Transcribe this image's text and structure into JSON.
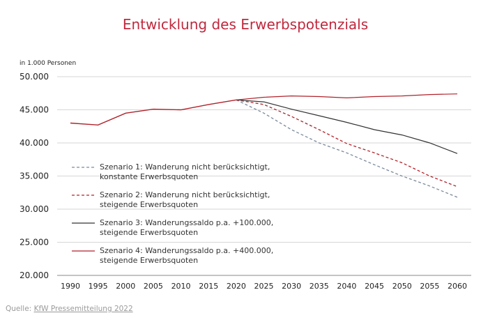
{
  "chart_data": {
    "type": "line",
    "title": "Entwicklung des Erwerbspotenzials",
    "ylabel": "in 1.000 Personen",
    "ylim": [
      20000,
      50000
    ],
    "yticks": [
      20000,
      25000,
      30000,
      35000,
      40000,
      45000,
      50000
    ],
    "ytick_labels": [
      "20.000",
      "25.000",
      "30.000",
      "35.000",
      "40.000",
      "45.000",
      "50.000"
    ],
    "x": [
      1990,
      1995,
      2000,
      2005,
      2010,
      2015,
      2020,
      2025,
      2030,
      2035,
      2040,
      2045,
      2050,
      2055,
      2060
    ],
    "xtick_labels": [
      "1990",
      "1995",
      "2000",
      "2005",
      "2010",
      "2015",
      "2020",
      "2025",
      "2030",
      "2035",
      "2040",
      "2045",
      "2050",
      "2055",
      "2060"
    ],
    "grid": "horizontal",
    "history": {
      "x": [
        1990,
        1995,
        2000,
        2005,
        2010,
        2015,
        2020
      ],
      "values": [
        43000,
        42700,
        44500,
        45100,
        45000,
        45800,
        46500
      ]
    },
    "series": [
      {
        "name": "Szenario 1: Wanderung nicht berücksichtigt, konstante Erwerbsquoten",
        "label_lines": [
          "Szenario 1: Wanderung nicht berücksichtigt,",
          "konstante Erwerbsquoten"
        ],
        "color": "#7a8a99",
        "style": "dashed",
        "x": [
          2020,
          2025,
          2030,
          2035,
          2040,
          2045,
          2050,
          2055,
          2060
        ],
        "values": [
          46500,
          44500,
          42000,
          40000,
          38500,
          36700,
          35000,
          33500,
          31800
        ]
      },
      {
        "name": "Szenario 2: Wanderung nicht berücksichtigt, steigende Erwerbsquoten",
        "label_lines": [
          "Szenario 2: Wanderung nicht berücksichtigt,",
          "steigende Erwerbsquoten"
        ],
        "color": "#b0222a",
        "style": "dashed",
        "x": [
          2020,
          2025,
          2030,
          2035,
          2040,
          2045,
          2050,
          2055,
          2060
        ],
        "values": [
          46500,
          45800,
          44000,
          42000,
          39900,
          38500,
          37000,
          35000,
          33400
        ]
      },
      {
        "name": "Szenario 3: Wanderungssaldo p.a. +100.000, steigende Erwerbsquoten",
        "label_lines": [
          "Szenario 3: Wanderungssaldo p.a. +100.000,",
          "steigende Erwerbsquoten"
        ],
        "color": "#333333",
        "style": "solid",
        "x": [
          2020,
          2025,
          2030,
          2035,
          2040,
          2045,
          2050,
          2055,
          2060
        ],
        "values": [
          46500,
          46200,
          45100,
          44100,
          43100,
          42000,
          41200,
          40000,
          38400
        ]
      },
      {
        "name": "Szenario 4: Wanderungssaldo p.a. +400.000, steigende Erwerbsquoten",
        "label_lines": [
          "Szenario 4: Wanderungssaldo p.a. +400.000,",
          "steigende Erwerbsquoten"
        ],
        "color": "#b0222a",
        "style": "solid",
        "x": [
          2020,
          2025,
          2030,
          2035,
          2040,
          2045,
          2050,
          2055,
          2060
        ],
        "values": [
          46500,
          46900,
          47100,
          47000,
          46800,
          47000,
          47100,
          47300,
          47400
        ]
      }
    ],
    "legend_position": "inside-lower-left"
  },
  "source": {
    "prefix": "Quelle: ",
    "link_text": "KfW Pressemitteilung 2022"
  }
}
